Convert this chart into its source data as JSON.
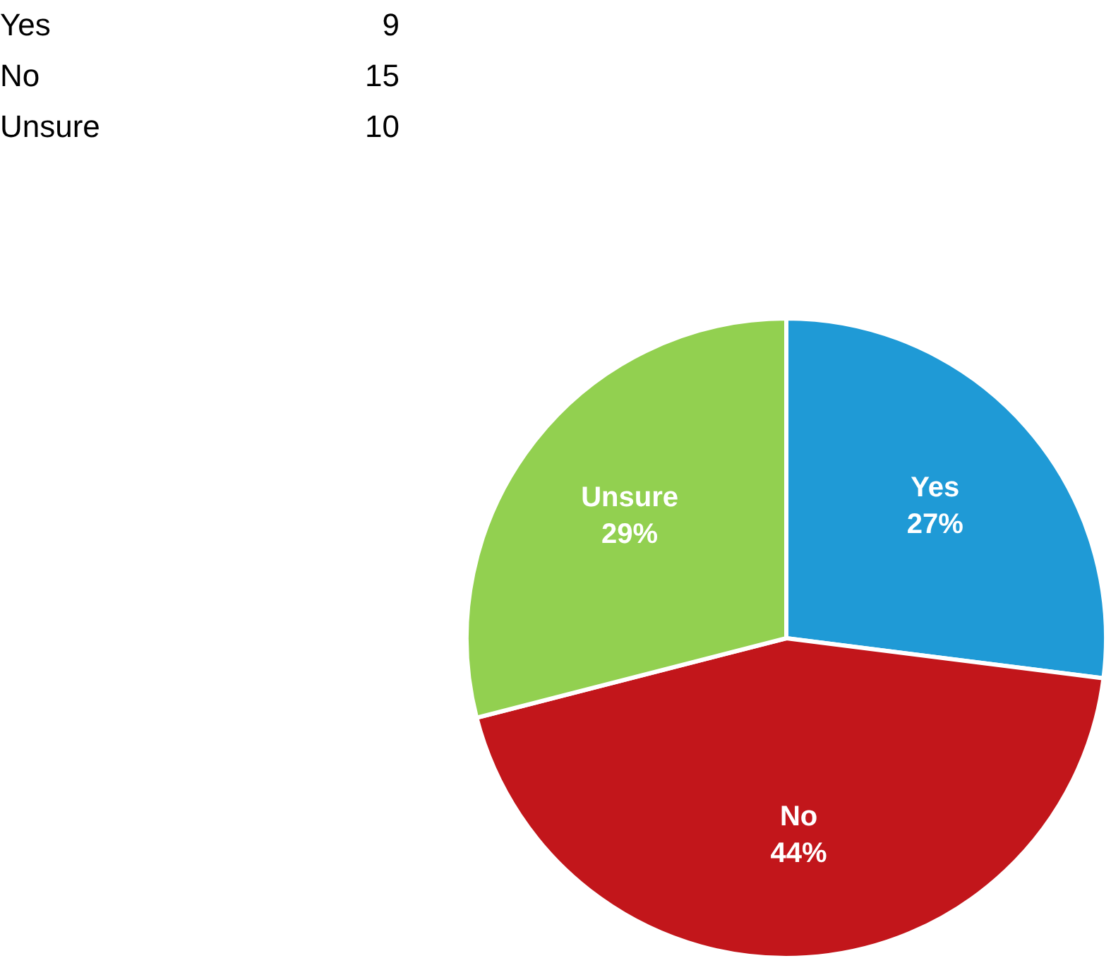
{
  "chart_data": {
    "type": "pie",
    "categories": [
      "Yes",
      "No",
      "Unsure"
    ],
    "values": [
      27,
      44,
      29
    ],
    "colors": [
      "#1f9ad6",
      "#c2161b",
      "#92d050"
    ],
    "value_labels": [
      "27%",
      "44%",
      "29%"
    ],
    "annotations": [
      "9",
      "15",
      "10"
    ],
    "legend": false
  }
}
